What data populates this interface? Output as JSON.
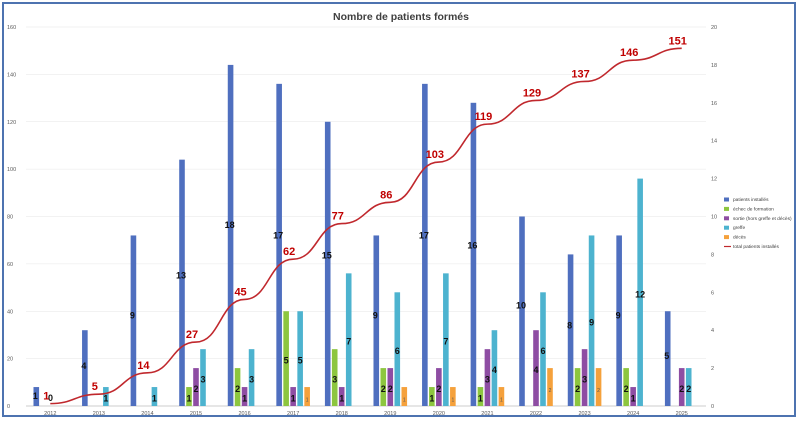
{
  "chart_data": {
    "type": "bar",
    "title": "Nombre de patients formés",
    "categories": [
      "2012",
      "2013",
      "2014",
      "2015",
      "2016",
      "2017",
      "2018",
      "2019",
      "2020",
      "2021",
      "2022",
      "2023",
      "2024",
      "2025"
    ],
    "y_left": {
      "min": 0,
      "max": 160,
      "step": 20,
      "ticks": [
        "0",
        "20",
        "40",
        "60",
        "80",
        "100",
        "120",
        "140",
        "160"
      ]
    },
    "y_right": {
      "min": 0,
      "max": 20,
      "step": 2,
      "ticks": [
        "0",
        "2",
        "4",
        "6",
        "8",
        "10",
        "12",
        "14",
        "16",
        "18",
        "20"
      ]
    },
    "legend_position": "right",
    "series": [
      {
        "name": "patients installés",
        "color": "#4f6fbf",
        "axis": "right",
        "values": [
          1,
          4,
          9,
          13,
          18,
          17,
          15,
          9,
          17,
          16,
          10,
          8,
          9,
          5
        ],
        "labels": [
          "1",
          "4",
          "9",
          "13",
          "18",
          "17",
          "15",
          "9",
          "17",
          "16",
          "10",
          "8",
          "9",
          "5"
        ]
      },
      {
        "name": "échec de formation",
        "color": "#8dc63f",
        "axis": "right",
        "values": [
          0,
          0,
          0,
          1,
          2,
          5,
          3,
          2,
          1,
          1,
          0,
          2,
          2,
          0
        ],
        "labels": [
          "",
          "",
          "",
          "1",
          "2",
          "5",
          "3",
          "2",
          "1",
          "1",
          "",
          "2",
          "2",
          ""
        ]
      },
      {
        "name": "sortie (hors greffe et décès)",
        "color": "#8e4da3",
        "axis": "right",
        "values": [
          0,
          0,
          0,
          2,
          1,
          1,
          1,
          2,
          2,
          3,
          4,
          3,
          1,
          2
        ],
        "labels": [
          "",
          "",
          "",
          "2",
          "1",
          "1",
          "1",
          "2",
          "2",
          "3",
          "4",
          "3",
          "1",
          "2"
        ]
      },
      {
        "name": "greffe",
        "color": "#4db3cf",
        "axis": "right",
        "values": [
          0,
          1,
          1,
          3,
          3,
          5,
          7,
          6,
          7,
          4,
          6,
          9,
          12,
          2
        ],
        "labels": [
          "",
          "1",
          "1",
          "3",
          "3",
          "5",
          "7",
          "6",
          "7",
          "4",
          "6",
          "9",
          "12",
          "2"
        ]
      },
      {
        "name": "décès",
        "color": "#f5a13c",
        "axis": "right",
        "values": [
          0,
          0,
          0,
          0,
          0,
          1,
          0,
          1,
          1,
          1,
          2,
          2,
          0,
          0
        ],
        "labels": [
          "",
          "",
          "",
          "",
          "",
          "1",
          "",
          "1",
          "1",
          "1",
          "2",
          "2",
          "",
          ""
        ]
      },
      {
        "name": "total patients installés",
        "color": "#c0282d",
        "axis": "left",
        "type": "line",
        "values": [
          1,
          5,
          14,
          27,
          45,
          62,
          77,
          86,
          103,
          119,
          129,
          137,
          146,
          151
        ],
        "labels": [
          "1",
          "5",
          "14",
          "27",
          "45",
          "62",
          "77",
          "86",
          "103",
          "119",
          "129",
          "137",
          "146",
          "151"
        ]
      }
    ],
    "zero_label": {
      "category": "2012",
      "text": "0"
    }
  }
}
